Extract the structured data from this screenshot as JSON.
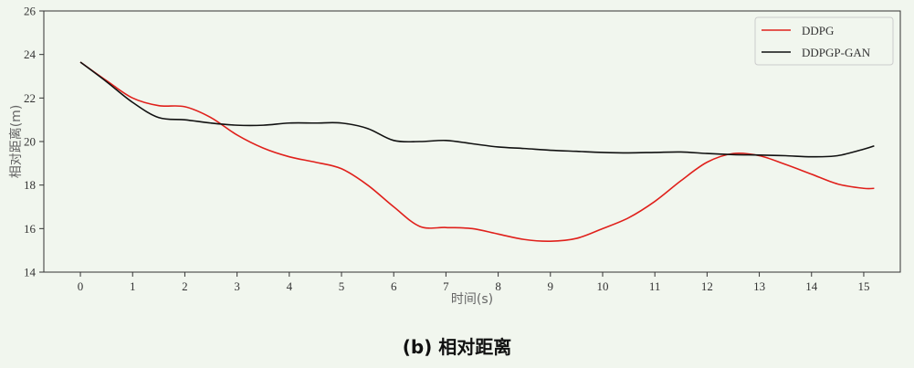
{
  "caption": "(b) 相对距离",
  "chart_data": {
    "type": "line",
    "xlabel": "时间(s)",
    "ylabel": "相对距离(m)",
    "xlim": [
      -0.7,
      15.7
    ],
    "ylim": [
      14,
      26
    ],
    "xticks": [
      0,
      1,
      2,
      3,
      4,
      5,
      6,
      7,
      8,
      9,
      10,
      11,
      12,
      13,
      14,
      15
    ],
    "yticks": [
      14,
      16,
      18,
      20,
      22,
      24,
      26
    ],
    "grid": false,
    "legend_position": "top-right",
    "series": [
      {
        "name": "DDPG",
        "color": "#e0201b",
        "x": [
          0,
          0.5,
          1,
          1.5,
          2,
          2.5,
          3,
          3.5,
          4,
          4.5,
          5,
          5.5,
          6,
          6.5,
          7,
          7.5,
          8,
          8.5,
          9,
          9.5,
          10,
          10.5,
          11,
          11.5,
          12,
          12.5,
          13,
          13.5,
          14,
          14.5,
          15,
          15.2
        ],
        "y": [
          23.65,
          22.8,
          22.0,
          21.65,
          21.6,
          21.1,
          20.3,
          19.7,
          19.3,
          19.05,
          18.75,
          18.0,
          17.0,
          16.1,
          16.05,
          16.0,
          15.75,
          15.5,
          15.42,
          15.55,
          16.0,
          16.5,
          17.25,
          18.2,
          19.05,
          19.45,
          19.35,
          18.95,
          18.5,
          18.05,
          17.85,
          17.85
        ]
      },
      {
        "name": "DDPGP-GAN",
        "color": "#111111",
        "x": [
          0,
          0.5,
          1,
          1.5,
          2,
          2.5,
          3,
          3.5,
          4,
          4.5,
          5,
          5.5,
          6,
          6.5,
          7,
          7.5,
          8,
          8.5,
          9,
          9.5,
          10,
          10.5,
          11,
          11.5,
          12,
          12.5,
          13,
          13.5,
          14,
          14.5,
          15,
          15.2
        ],
        "y": [
          23.65,
          22.75,
          21.8,
          21.1,
          21.0,
          20.85,
          20.75,
          20.75,
          20.85,
          20.85,
          20.85,
          20.6,
          20.05,
          20.0,
          20.05,
          19.9,
          19.75,
          19.68,
          19.6,
          19.55,
          19.5,
          19.48,
          19.5,
          19.52,
          19.45,
          19.4,
          19.38,
          19.35,
          19.3,
          19.35,
          19.65,
          19.8
        ]
      }
    ]
  }
}
